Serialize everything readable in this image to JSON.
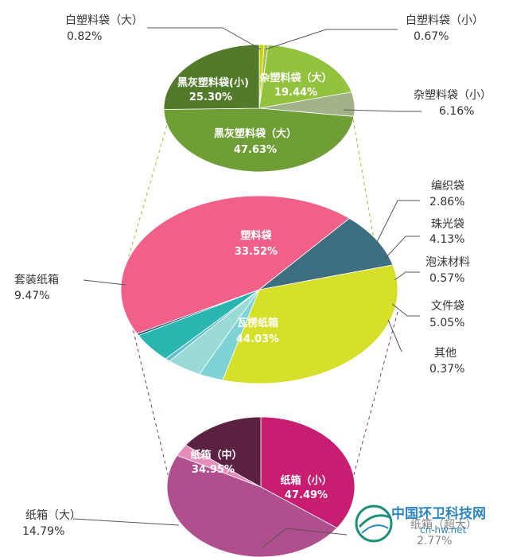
{
  "chart_data": [
    {
      "type": "pie",
      "group": "塑料袋",
      "slices": [
        {
          "label": "白塑料袋（大）",
          "value": 0.82,
          "color": "#c8d400",
          "text": "白塑料袋（大）",
          "pct": "0.82%"
        },
        {
          "label": "白塑料袋（小）",
          "value": 0.67,
          "color": "#a8c24a",
          "text": "白塑料袋（小）",
          "pct": "0.67%"
        },
        {
          "label": "杂塑料袋（大）",
          "value": 19.44,
          "color": "#92c23e",
          "text": "杂塑料袋（大）",
          "pct": "19.44%"
        },
        {
          "label": "杂塑料袋（小）",
          "value": 6.16,
          "color": "#a2b38a",
          "text": "杂塑料袋（小）",
          "pct": "6.16%"
        },
        {
          "label": "黑灰塑料袋（大）",
          "value": 47.63,
          "color": "#6e9e35",
          "text": "黑灰塑料袋（大）",
          "pct": "47.63%"
        },
        {
          "label": "黑灰塑料袋（小）",
          "value": 25.3,
          "color": "#527a2b",
          "text": "黑灰塑料袋(小)",
          "pct": "25.30%"
        }
      ]
    },
    {
      "type": "pie",
      "group": "总体",
      "slices": [
        {
          "label": "塑料袋",
          "value": 33.52,
          "color": "#d6e02a",
          "text": "塑料袋",
          "pct": "33.52%"
        },
        {
          "label": "编织袋",
          "value": 2.86,
          "color": "#7fd3d4",
          "text": "编织袋",
          "pct": "2.86%"
        },
        {
          "label": "珠光袋",
          "value": 4.13,
          "color": "#9adbd8",
          "text": "珠光袋",
          "pct": "4.13%"
        },
        {
          "label": "泡沫材料",
          "value": 0.57,
          "color": "#5fbdc6",
          "text": "泡沫材料",
          "pct": "0.57%"
        },
        {
          "label": "文件袋",
          "value": 5.05,
          "color": "#2ab5b0",
          "text": "文件袋",
          "pct": "5.05%"
        },
        {
          "label": "其他",
          "value": 0.37,
          "color": "#1d5d73",
          "text": "其他",
          "pct": "0.37%"
        },
        {
          "label": "瓦楞纸箱",
          "value": 44.03,
          "color": "#f06088",
          "text": "瓦楞纸箱",
          "pct": "44.03%"
        },
        {
          "label": "套装纸箱",
          "value": 9.47,
          "color": "#3e6f80",
          "text": "套装纸箱",
          "pct": "9.47%"
        }
      ]
    },
    {
      "type": "pie",
      "group": "纸箱",
      "slices": [
        {
          "label": "纸箱（中）",
          "value": 34.95,
          "color": "#c81e72",
          "text": "纸箱（中）",
          "pct": "34.95%"
        },
        {
          "label": "纸箱（小）",
          "value": 47.49,
          "color": "#b04f8e",
          "text": "纸箱（小）",
          "pct": "47.49%"
        },
        {
          "label": "纸箱（超大）",
          "value": 2.77,
          "color": "#e68cb8",
          "text": "纸箱（超大）",
          "pct": "2.77%"
        },
        {
          "label": "纸箱（大）",
          "value": 14.79,
          "color": "#5a2140",
          "text": "纸箱（大）",
          "pct": "14.79%"
        }
      ]
    }
  ],
  "watermark": {
    "title": "中国环卫科技网",
    "url": "cn-hw.net"
  }
}
